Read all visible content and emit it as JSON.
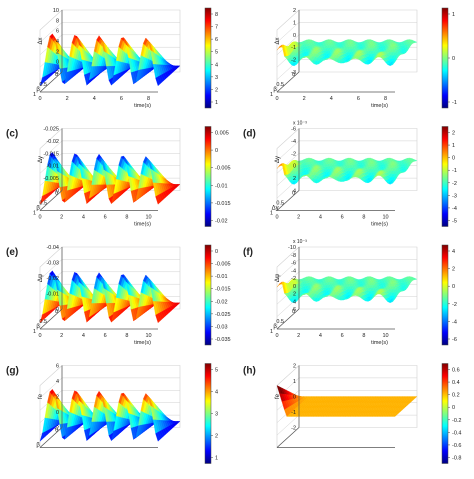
{
  "chart_data": [
    {
      "panel": "",
      "type": "surface",
      "colormap": "jet",
      "ylabel": "β",
      "xlabel": "time(s)",
      "zlabel": "Δx",
      "x_ticks": [
        "0",
        "2",
        "4",
        "6",
        "8"
      ],
      "y_ticks": [
        "0",
        "0.5",
        "1"
      ],
      "z_ticks": [
        "10",
        "8",
        "6",
        "4",
        "2",
        "0",
        "-2"
      ],
      "colorbar_ticks": [
        "8",
        "7",
        "6",
        "5",
        "4",
        "3",
        "2",
        "1"
      ],
      "z_range": [
        -2,
        10
      ],
      "peaks": 5,
      "peak_value": 9,
      "form": "oscillating",
      "sign": 1
    },
    {
      "panel": "",
      "type": "surface",
      "colormap": "jet",
      "ylabel": "β",
      "xlabel": "time(s)",
      "zlabel": "Δx",
      "x_ticks": [
        "0",
        "2",
        "4",
        "6",
        "8"
      ],
      "y_ticks": [
        "0",
        "0.5",
        "1"
      ],
      "z_ticks": [
        "2",
        "1",
        "0",
        "-1",
        "-2",
        "-3"
      ],
      "colorbar_ticks": [
        "1",
        "0",
        "-1"
      ],
      "z_range": [
        -3,
        2
      ],
      "peaks": 5,
      "peak_value": 0.3,
      "form": "flat_noisy",
      "sign": 1
    },
    {
      "panel": "(c)",
      "type": "surface",
      "colormap": "jet",
      "ylabel": "β",
      "xlabel": "time(s)",
      "zlabel": "Δy",
      "x_ticks": [
        "0",
        "2",
        "4",
        "6",
        "8",
        "10"
      ],
      "y_ticks": [
        "0",
        "0.5",
        "1"
      ],
      "z_ticks": [
        "-0.025",
        "-0.02",
        "-0.015",
        "-0.01",
        "-0.005",
        "0"
      ],
      "colorbar_ticks": [
        "0.005",
        "0",
        "-0.005",
        "-0.01",
        "-0.015",
        "-0.02"
      ],
      "z_range": [
        -0.025,
        0.005
      ],
      "peaks": 5,
      "peak_value": -0.02,
      "form": "oscillating",
      "sign": -1
    },
    {
      "panel": "(d)",
      "type": "surface",
      "colormap": "jet",
      "ylabel": "Δy",
      "xlabel": "time(s)",
      "zlabel": "Δy",
      "exponent": "x 10⁻³",
      "x_ticks": [
        "0",
        "2",
        "4",
        "6",
        "8",
        "10"
      ],
      "y_ticks": [
        "0",
        "0.5",
        "1"
      ],
      "z_ticks": [
        "-6",
        "-4",
        "-2",
        "0",
        "2",
        "4"
      ],
      "colorbar_ticks": [
        "2",
        "1",
        "0",
        "-1",
        "-2",
        "-3",
        "-4",
        "-5"
      ],
      "z_range": [
        -6,
        4
      ],
      "peaks": 5,
      "peak_value": 1.5,
      "form": "flat_noisy",
      "sign": -1
    },
    {
      "panel": "(e)",
      "type": "surface",
      "colormap": "jet",
      "ylabel": "β",
      "xlabel": "time(s)",
      "zlabel": "Δψ",
      "x_ticks": [
        "0",
        "2",
        "4",
        "6",
        "8",
        "10"
      ],
      "y_ticks": [
        "0",
        "0.5",
        "1"
      ],
      "z_ticks": [
        "-0.04",
        "-0.03",
        "-0.02",
        "-0.01",
        "0"
      ],
      "colorbar_ticks": [
        "0",
        "-0.005",
        "-0.01",
        "-0.015",
        "-0.02",
        "-0.025",
        "-0.03",
        "-0.035"
      ],
      "z_range": [
        -0.04,
        0
      ],
      "peaks": 5,
      "peak_value": -0.035,
      "form": "oscillating",
      "sign": -1
    },
    {
      "panel": "(f)",
      "type": "surface",
      "colormap": "jet",
      "ylabel": "β",
      "xlabel": "time(s)",
      "zlabel": "Δψ",
      "exponent": "x 10⁻³",
      "x_ticks": [
        "0",
        "2",
        "4",
        "6",
        "8",
        "10"
      ],
      "y_ticks": [
        "0",
        "0.5",
        "1"
      ],
      "z_ticks": [
        "-10",
        "-8",
        "-6",
        "-4",
        "-2",
        "0",
        "2",
        "4",
        "6"
      ],
      "colorbar_ticks": [
        "4",
        "2",
        "0",
        "-2",
        "-4",
        "-6"
      ],
      "z_range": [
        -10,
        6
      ],
      "peaks": 5,
      "peak_value": 2,
      "form": "flat_noisy",
      "sign": -1
    },
    {
      "panel": "(g)",
      "type": "surface",
      "colormap": "jet",
      "ylabel": "β",
      "xlabel": "",
      "zlabel": "fe",
      "x_ticks": [],
      "y_ticks": [
        "0"
      ],
      "z_ticks": [
        "6",
        "4",
        "2",
        "0",
        "-2"
      ],
      "colorbar_ticks": [
        "5",
        "4",
        "3",
        "2",
        "1"
      ],
      "z_range": [
        -2,
        6
      ],
      "peaks": 5,
      "peak_value": 5,
      "form": "oscillating",
      "sign": 1
    },
    {
      "panel": "(h)",
      "type": "surface",
      "colormap": "jet",
      "ylabel": "",
      "xlabel": "",
      "zlabel": "fe",
      "x_ticks": [],
      "y_ticks": [],
      "z_ticks": [
        "2",
        "1",
        "0",
        "-1",
        "-2"
      ],
      "colorbar_ticks": [
        "0.6",
        "0.4",
        "0.2",
        "0",
        "-0.2",
        "-0.4",
        "-0.6",
        "-0.8"
      ],
      "z_range": [
        -2,
        2
      ],
      "peaks": 1,
      "peak_value": 1,
      "form": "flat_spike",
      "sign": 1
    }
  ]
}
